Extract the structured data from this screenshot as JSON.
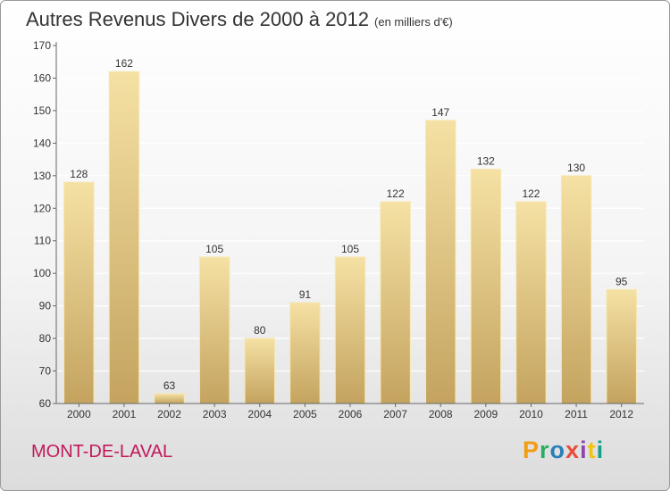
{
  "header": {
    "title": "Autres Revenus Divers de 2000 à 2012",
    "subtitle": "(en milliers d'€)"
  },
  "footer": {
    "town": "MONT-DE-LAVAL",
    "brand": "Proxiti"
  },
  "colors": {
    "bar": "#e6cd84",
    "bar_light": "#f5e1a4",
    "bar_dark": "#c4a35f",
    "town": "#c2185b",
    "grid": "#ffffff",
    "brand_letters": [
      "#f39c12",
      "#27ae60",
      "#2980b9",
      "#e74c3c",
      "#8e44ad",
      "#f1c40f",
      "#16a085"
    ]
  },
  "chart_data": {
    "type": "bar",
    "categories": [
      "2000",
      "2001",
      "2002",
      "2003",
      "2004",
      "2005",
      "2006",
      "2007",
      "2008",
      "2009",
      "2010",
      "2011",
      "2012"
    ],
    "values": [
      128,
      162,
      63,
      105,
      80,
      91,
      105,
      122,
      147,
      132,
      122,
      130,
      95
    ],
    "ylim": [
      60,
      170
    ],
    "yticks": [
      60,
      70,
      80,
      90,
      100,
      110,
      120,
      130,
      140,
      150,
      160,
      170
    ],
    "grid": true,
    "legend": "none"
  }
}
